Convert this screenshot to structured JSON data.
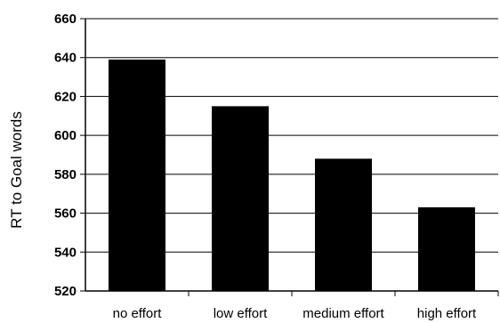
{
  "chart_data": {
    "type": "bar",
    "title": "",
    "xlabel": "",
    "ylabel": "RT to Goal words",
    "categories": [
      "no effort",
      "low effort",
      "medium effort",
      "high effort"
    ],
    "values": [
      639,
      615,
      588,
      563
    ],
    "ylim": [
      520,
      660
    ],
    "yticks": [
      520,
      540,
      560,
      580,
      600,
      620,
      640,
      660
    ],
    "grid": true,
    "legend": "none",
    "bar_color": "#000000",
    "grid_color": "#000000"
  }
}
